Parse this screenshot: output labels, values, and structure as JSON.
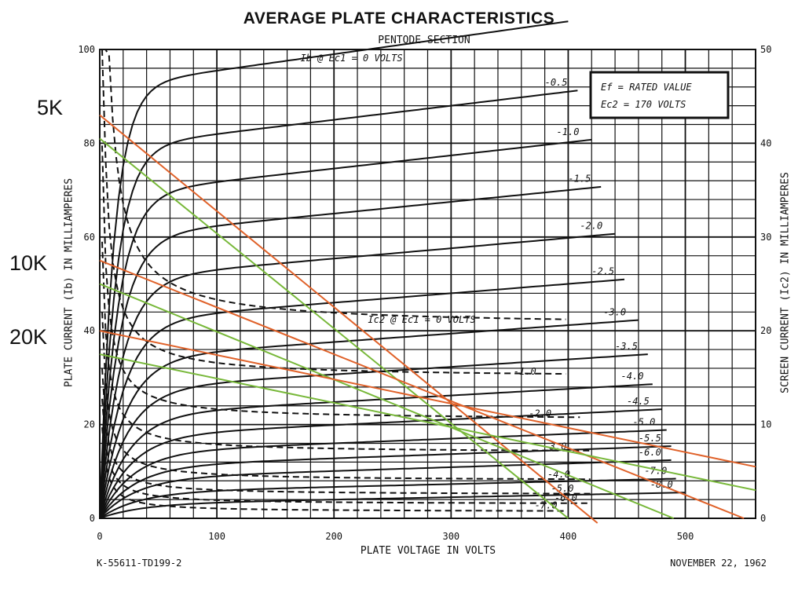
{
  "chart_data": {
    "type": "line",
    "title": "AVERAGE PLATE CHARACTERISTICS",
    "subtitle": "PENTODE SECTION",
    "xlabel": "PLATE VOLTAGE IN VOLTS",
    "ylabel_left": "PLATE CURRENT (Ib) IN MILLIAMPERES",
    "ylabel_right": "SCREEN CURRENT (Ic2) IN MILLIAMPERES",
    "xlim": [
      0,
      560
    ],
    "ylim": [
      0,
      100
    ],
    "ylim_right": [
      0,
      50
    ],
    "x_ticks": [
      "0",
      "100",
      "200",
      "300",
      "400",
      "500"
    ],
    "y_ticks_left": [
      "0",
      "20",
      "40",
      "60",
      "80",
      "100"
    ],
    "y_ticks_right": [
      "0",
      "10",
      "20",
      "30",
      "40",
      "50"
    ],
    "grid": true,
    "conditions": [
      "Ef = RATED VALUE",
      "Ec2 = 170 VOLTS"
    ],
    "plate_curves": [
      {
        "label": "Ib @ Ec1 = 0 VOLTS",
        "end_x": 400,
        "y_end": 98,
        "knee": 92,
        "slope": 0.035
      },
      {
        "label": "-0.5",
        "end_x": 410,
        "y_end": 87,
        "knee": 79,
        "slope": 0.03
      },
      {
        "label": "-1.0",
        "end_x": 420,
        "y_end": 76,
        "knee": 69,
        "slope": 0.028
      },
      {
        "label": "-1.5",
        "end_x": 430,
        "y_end": 66,
        "knee": 60,
        "slope": 0.025
      },
      {
        "label": "-2.0",
        "end_x": 440,
        "y_end": 56,
        "knee": 51,
        "slope": 0.022
      },
      {
        "label": "-2.5",
        "end_x": 450,
        "y_end": 46,
        "knee": 42,
        "slope": 0.02
      },
      {
        "label": "-3.0",
        "end_x": 460,
        "y_end": 38,
        "knee": 34,
        "slope": 0.018
      },
      {
        "label": "-3.5",
        "end_x": 470,
        "y_end": 31,
        "knee": 27.5,
        "slope": 0.016
      },
      {
        "label": "-4.0",
        "end_x": 475,
        "y_end": 25,
        "knee": 22,
        "slope": 0.014
      },
      {
        "label": "-4.5",
        "end_x": 480,
        "y_end": 20,
        "knee": 17.5,
        "slope": 0.012
      },
      {
        "label": "-5.0",
        "end_x": 485,
        "y_end": 16,
        "knee": 14,
        "slope": 0.01
      },
      {
        "label": "-5.5",
        "end_x": 490,
        "y_end": 12.5,
        "knee": 11,
        "slope": 0.009
      },
      {
        "label": "-6.0",
        "end_x": 490,
        "y_end": 10,
        "knee": 8.5,
        "slope": 0.008
      },
      {
        "label": "-7.0",
        "end_x": 495,
        "y_end": 6.5,
        "knee": 5.5,
        "slope": 0.006
      },
      {
        "label": "-8.0",
        "end_x": 500,
        "y_end": 3.5,
        "knee": 3,
        "slope": 0.005
      }
    ],
    "screen_curves": [
      {
        "label": "Ic2 @ Ec1 = 0 VOLTS",
        "end_x": 400,
        "y_end_right": 20.5,
        "x_hyp": 120
      },
      {
        "label": "-1.0",
        "end_x": 400,
        "y_end_right": 15,
        "x_hyp": 90
      },
      {
        "label": "-2.0",
        "end_x": 410,
        "y_end_right": 10.5,
        "x_hyp": 65
      },
      {
        "label": "-3.0",
        "end_x": 420,
        "y_end_right": 7,
        "x_hyp": 50
      },
      {
        "label": "-4.0",
        "end_x": 420,
        "y_end_right": 4,
        "x_hyp": 40
      },
      {
        "label": "-5.0",
        "end_x": 420,
        "y_end_right": 2.5,
        "x_hyp": 30
      },
      {
        "label": "-6.0",
        "end_x": 420,
        "y_end_right": 1.5,
        "x_hyp": 25
      },
      {
        "label": "-7.0",
        "end_x": 400,
        "y_end_right": 0.7,
        "x_hyp": 20
      }
    ],
    "load_lines": [
      {
        "label": "5K",
        "color": "#e0622a",
        "points": [
          [
            0,
            86
          ],
          [
            425,
            -1
          ]
        ]
      },
      {
        "label": "5K",
        "color": "#78b83a",
        "points": [
          [
            0,
            81
          ],
          [
            400,
            0
          ]
        ]
      },
      {
        "label": "10K",
        "color": "#e0622a",
        "points": [
          [
            0,
            55
          ],
          [
            550,
            0
          ]
        ]
      },
      {
        "label": "10K",
        "color": "#78b83a",
        "points": [
          [
            0,
            50
          ],
          [
            490,
            0
          ]
        ]
      },
      {
        "label": "20K",
        "color": "#e0622a",
        "points": [
          [
            0,
            40
          ],
          [
            560,
            11
          ]
        ]
      },
      {
        "label": "20K",
        "color": "#78b83a",
        "points": [
          [
            0,
            35
          ],
          [
            560,
            6
          ]
        ]
      }
    ],
    "load_labels": [
      "5K",
      "10K",
      "20K"
    ]
  },
  "footer": {
    "left": "K-55611-TD199-2",
    "right": "NOVEMBER 22, 1962"
  },
  "colors": {
    "grid": "#111111",
    "orange_load": "#e0622a",
    "green_load": "#78b83a"
  }
}
